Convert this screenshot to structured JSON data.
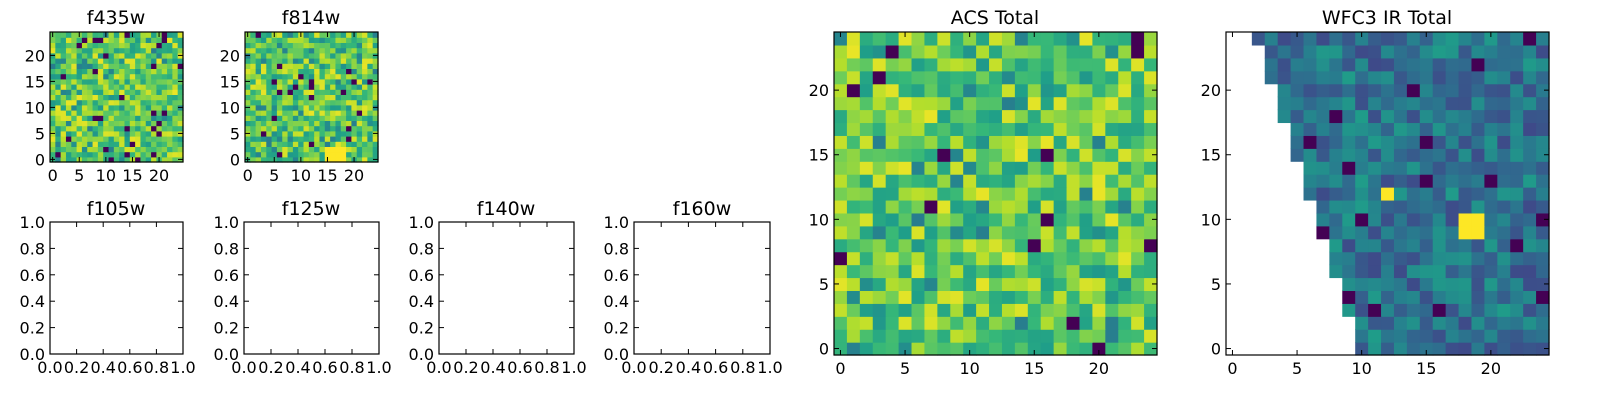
{
  "chart_data": [
    {
      "type": "heatmap",
      "title": "f435w",
      "xlabel": "",
      "ylabel": "",
      "grid_size": [
        25,
        25
      ],
      "xlim": [
        -0.5,
        24.5
      ],
      "ylim": [
        -0.5,
        24.5
      ],
      "xticks": [
        0,
        5,
        10,
        15,
        20
      ],
      "yticks": [
        0,
        5,
        10,
        15,
        20
      ],
      "colormap": "viridis",
      "pattern": "noisy green-yellow pixels with scattered dark-purple pixels",
      "seed": 11,
      "dark_fraction": 0.05,
      "blob": null
    },
    {
      "type": "heatmap",
      "title": "f814w",
      "xlabel": "",
      "ylabel": "",
      "grid_size": [
        25,
        25
      ],
      "xlim": [
        -0.5,
        24.5
      ],
      "ylim": [
        -0.5,
        24.5
      ],
      "xticks": [
        0,
        5,
        10,
        15,
        20
      ],
      "yticks": [
        0,
        5,
        10,
        15,
        20
      ],
      "colormap": "viridis",
      "pattern": "noisy green-yellow pixels, bright-yellow patch near x=15-18, y=0-2",
      "seed": 23,
      "dark_fraction": 0.03,
      "blob": {
        "x": [
          15,
          18
        ],
        "y": [
          0,
          2
        ]
      }
    },
    {
      "type": "heatmap",
      "title": "f105w",
      "empty": true,
      "xlim": [
        0,
        1
      ],
      "ylim": [
        0,
        1
      ],
      "xticks": [
        "0.0",
        "0.2",
        "0.4",
        "0.6",
        "0.8",
        "1.0"
      ],
      "yticks": [
        "0.0",
        "0.2",
        "0.4",
        "0.6",
        "0.8",
        "1.0"
      ]
    },
    {
      "type": "heatmap",
      "title": "f125w",
      "empty": true,
      "xlim": [
        0,
        1
      ],
      "ylim": [
        0,
        1
      ],
      "xticks": [
        "0.0",
        "0.2",
        "0.4",
        "0.6",
        "0.8",
        "1.0"
      ],
      "yticks": [
        "0.0",
        "0.2",
        "0.4",
        "0.6",
        "0.8",
        "1.0"
      ]
    },
    {
      "type": "heatmap",
      "title": "f140w",
      "empty": true,
      "xlim": [
        0,
        1
      ],
      "ylim": [
        0,
        1
      ],
      "xticks": [
        "0.0",
        "0.2",
        "0.4",
        "0.6",
        "0.8",
        "1.0"
      ],
      "yticks": [
        "0.0",
        "0.2",
        "0.4",
        "0.6",
        "0.8",
        "1.0"
      ]
    },
    {
      "type": "heatmap",
      "title": "f160w",
      "empty": true,
      "xlim": [
        0,
        1
      ],
      "ylim": [
        0,
        1
      ],
      "xticks": [
        "0.0",
        "0.2",
        "0.4",
        "0.6",
        "0.8",
        "1.0"
      ],
      "yticks": [
        "0.0",
        "0.2",
        "0.4",
        "0.6",
        "0.8",
        "1.0"
      ]
    },
    {
      "type": "heatmap",
      "title": "ACS Total",
      "xlabel": "",
      "ylabel": "",
      "grid_size": [
        25,
        25
      ],
      "xlim": [
        -0.5,
        24.5
      ],
      "ylim": [
        -0.5,
        24.5
      ],
      "xticks": [
        0,
        5,
        10,
        15,
        20
      ],
      "yticks": [
        0,
        5,
        10,
        15,
        20
      ],
      "colormap": "viridis",
      "pattern": "noisy green-yellow pixels with a few dark-purple pixels",
      "seed": 37,
      "dark_fraction": 0.02,
      "blob": null
    },
    {
      "type": "heatmap",
      "title": "WFC3 IR Total",
      "xlabel": "",
      "ylabel": "",
      "grid_size": [
        25,
        25
      ],
      "xlim": [
        -0.5,
        24.5
      ],
      "ylim": [
        -0.5,
        24.5
      ],
      "xticks": [
        0,
        5,
        10,
        15,
        20
      ],
      "yticks": [
        0,
        5,
        10,
        15,
        20
      ],
      "colormap": "viridis",
      "pattern": "blue-teal pixels, blank (no data) triangular region on the left, bright-yellow source near x=18-19, y=9-10",
      "seed": 53,
      "dark_fraction": 0.04,
      "blank_boundary": {
        "top_row": 24,
        "x_at_top": 2.5,
        "bottom_row": 0,
        "x_at_bottom": 10.5
      },
      "blob": {
        "x": [
          18,
          19
        ],
        "y": [
          9,
          10
        ]
      },
      "bright_pixel": {
        "x": 12,
        "y": 12
      }
    }
  ]
}
